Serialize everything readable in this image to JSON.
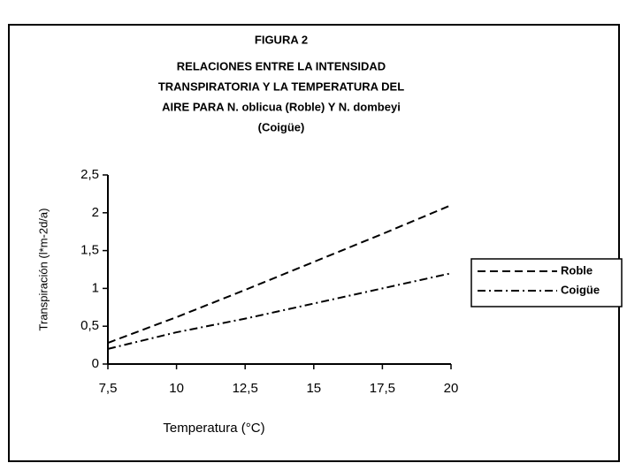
{
  "chart_data": {
    "type": "line",
    "title": [
      "FIGURA 2",
      "RELACIONES ENTRE LA INTENSIDAD",
      "TRANSPIRATORIA Y LA TEMPERATURA DEL",
      "AIRE PARA N. oblicua (Roble) Y N. dombeyi",
      "(Coigüe)"
    ],
    "xlabel": "Temperatura (°C)",
    "ylabel": "Transpiración (l*m-2d/a)",
    "x": [
      7.5,
      10,
      12.5,
      15,
      17.5,
      20
    ],
    "series": [
      {
        "name": "Roble",
        "color": "#000000",
        "style": "dashed",
        "values": [
          0.28,
          0.62,
          0.98,
          1.35,
          1.72,
          2.1
        ]
      },
      {
        "name": "Coigüe",
        "color": "#000000",
        "style": "dashdot",
        "values": [
          0.2,
          0.42,
          0.6,
          0.8,
          1.0,
          1.2
        ]
      }
    ],
    "xlim": [
      7.5,
      20
    ],
    "xticks": [
      {
        "value": 7.5,
        "label": "7,5"
      },
      10,
      {
        "value": 12.5,
        "label": "12,5"
      },
      15,
      {
        "value": 17.5,
        "label": "17,5"
      },
      20
    ],
    "ylim": [
      0,
      2.5
    ],
    "yticks": [
      0,
      {
        "value": 0.5,
        "label": "0,5"
      },
      1,
      {
        "value": 1.5,
        "label": "1,5"
      },
      2,
      {
        "value": 2.5,
        "label": "2,5"
      }
    ],
    "grid": false,
    "legend": "right"
  }
}
